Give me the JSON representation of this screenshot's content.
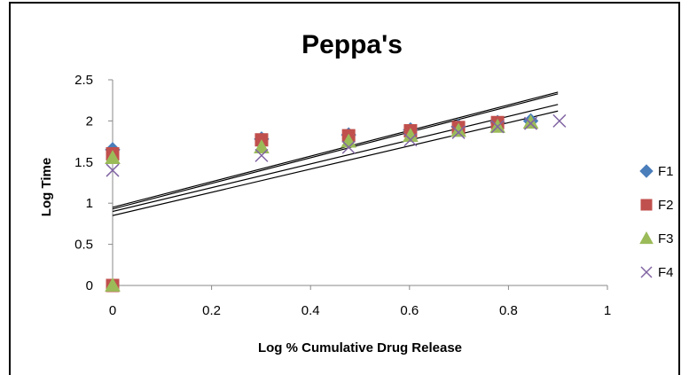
{
  "chart_data": {
    "type": "scatter",
    "title": "Peppa's",
    "xlabel": "Log % Cumulative Drug Release",
    "ylabel": "Log Time",
    "xlim": [
      0,
      1
    ],
    "ylim": [
      0,
      2.5
    ],
    "x_ticks": [
      "0",
      "0.2",
      "0.4",
      "0.6",
      "0.8",
      "1"
    ],
    "y_ticks": [
      "0",
      "0.5",
      "1",
      "1.5",
      "2",
      "2.5"
    ],
    "grid": false,
    "legend_position": "right",
    "series": [
      {
        "name": "F1",
        "marker": "diamond",
        "color": "#4a7ebb",
        "x": [
          0,
          0.301,
          0.477,
          0.602,
          0.699,
          0.778,
          0.845
        ],
        "y": [
          1.65,
          1.78,
          1.83,
          1.89,
          1.93,
          1.98,
          2.0
        ],
        "trend": [
          0.95,
          2.35
        ]
      },
      {
        "name": "F2",
        "marker": "square",
        "color": "#c0504d",
        "x": [
          0,
          0,
          0.301,
          0.477,
          0.602,
          0.699,
          0.778
        ],
        "y": [
          0,
          1.6,
          1.77,
          1.82,
          1.88,
          1.92,
          1.98
        ],
        "trend": [
          0.93,
          2.33
        ]
      },
      {
        "name": "F3",
        "marker": "triangle",
        "color": "#9bbb59",
        "x": [
          0,
          0,
          0.301,
          0.477,
          0.602,
          0.699,
          0.778,
          0.845
        ],
        "y": [
          0,
          1.55,
          1.68,
          1.75,
          1.82,
          1.88,
          1.93,
          1.98
        ],
        "trend": [
          0.9,
          2.2
        ]
      },
      {
        "name": "F4",
        "marker": "x",
        "color": "#8064a2",
        "x": [
          0,
          0.301,
          0.477,
          0.602,
          0.699,
          0.778,
          0.845,
          0.903
        ],
        "y": [
          1.4,
          1.58,
          1.68,
          1.77,
          1.86,
          1.93,
          1.97,
          2.0
        ],
        "trend": [
          0.85,
          2.12
        ]
      }
    ]
  }
}
